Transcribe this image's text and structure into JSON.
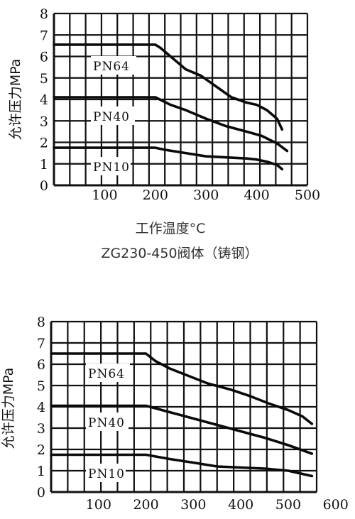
{
  "chart_data": [
    {
      "type": "line",
      "ylabel": "允许压力MPa",
      "xlabel": "工作温度°C",
      "caption": "ZG230-450阀体（铸钢）",
      "xlim": [
        0,
        500
      ],
      "ylim": [
        0,
        8
      ],
      "x_ticks": [
        "100",
        "200",
        "300",
        "400",
        "500"
      ],
      "y_ticks": [
        "0",
        "1",
        "2",
        "3",
        "4",
        "5",
        "6",
        "7",
        "8"
      ],
      "grid": true,
      "series": [
        {
          "name": "PN64",
          "x": [
            0,
            200,
            210,
            230,
            260,
            290,
            320,
            350,
            380,
            400,
            420,
            440,
            450
          ],
          "y": [
            6.55,
            6.55,
            6.4,
            6.0,
            5.4,
            5.1,
            4.6,
            4.1,
            3.85,
            3.75,
            3.5,
            3.1,
            2.6
          ]
        },
        {
          "name": "PN40",
          "x": [
            0,
            200,
            230,
            260,
            300,
            340,
            380,
            410,
            440,
            460
          ],
          "y": [
            4.1,
            4.1,
            3.75,
            3.5,
            3.1,
            2.75,
            2.5,
            2.3,
            1.95,
            1.6
          ]
        },
        {
          "name": "PN10",
          "x": [
            0,
            200,
            220,
            260,
            300,
            340,
            380,
            400,
            420,
            440,
            450
          ],
          "y": [
            1.75,
            1.75,
            1.65,
            1.5,
            1.35,
            1.3,
            1.25,
            1.2,
            1.1,
            0.95,
            0.75
          ]
        }
      ]
    },
    {
      "type": "line",
      "ylabel": "允许压力MPa",
      "xlabel": "",
      "xlim": [
        0,
        600
      ],
      "ylim": [
        0,
        8
      ],
      "x_ticks": [
        "100",
        "200",
        "300",
        "400",
        "500",
        "600"
      ],
      "y_ticks": [
        "0",
        "1",
        "2",
        "3",
        "4",
        "5",
        "6",
        "7",
        "8"
      ],
      "grid": true,
      "series": [
        {
          "name": "PN64",
          "x": [
            0,
            200,
            220,
            250,
            290,
            330,
            380,
            420,
            460,
            500,
            530,
            550
          ],
          "y": [
            6.5,
            6.5,
            6.15,
            5.8,
            5.45,
            5.1,
            4.8,
            4.5,
            4.15,
            3.85,
            3.55,
            3.2
          ]
        },
        {
          "name": "PN40",
          "x": [
            0,
            200,
            250,
            300,
            350,
            400,
            450,
            500,
            550
          ],
          "y": [
            4.05,
            4.05,
            3.75,
            3.45,
            3.15,
            2.85,
            2.55,
            2.2,
            1.8
          ]
        },
        {
          "name": "PN10",
          "x": [
            0,
            200,
            250,
            300,
            350,
            400,
            450,
            500,
            530,
            550
          ],
          "y": [
            1.75,
            1.75,
            1.55,
            1.38,
            1.2,
            1.15,
            1.1,
            1.0,
            0.85,
            0.75
          ]
        }
      ]
    }
  ]
}
